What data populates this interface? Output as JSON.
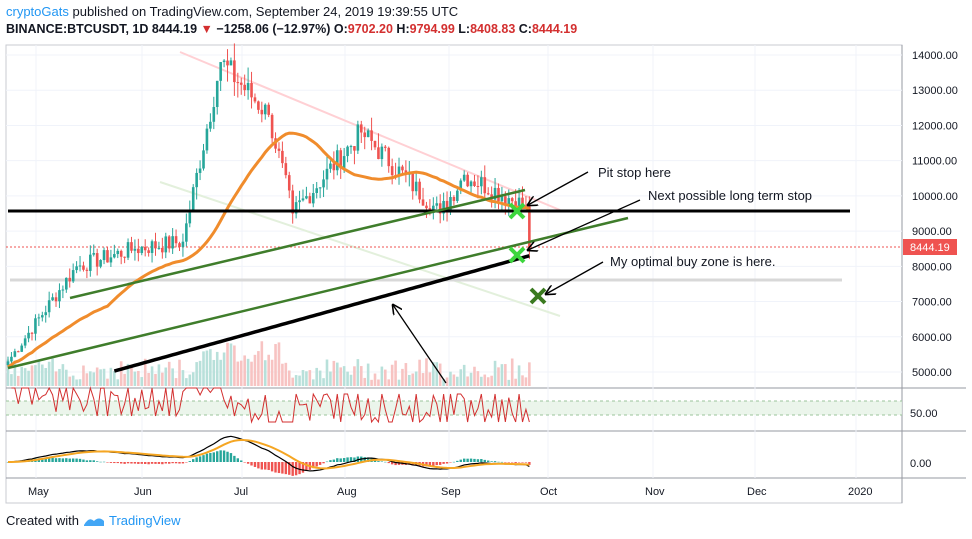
{
  "header": {
    "author": "cryptoGats",
    "published": "published on TradingView.com, September 24, 2019 19:39:55 UTC",
    "symbol": "BINANCE:BTCUSDT, 1D",
    "last": "8444.19",
    "change": "−1258.06 (−12.97%)",
    "o_label": "O:",
    "o_value": "9702.20",
    "h_label": "H:",
    "h_value": "9794.99",
    "l_label": "L:",
    "l_value": "8408.83",
    "c_label": "C:",
    "c_value": "8444.19"
  },
  "footer": {
    "created_with": "Created with",
    "brand": "TradingView"
  },
  "annotations": {
    "pit_stop": "Pit stop here",
    "next_stop": "Next possible long term stop",
    "buy_zone": "My optimal buy zone is here."
  },
  "colors": {
    "up": "#26a69a",
    "down": "#ef5350",
    "ma50": "#f08c2c",
    "ma200": "#000000",
    "trendline": "#3f7d2b",
    "resistance": "#ff9aa2",
    "marker_green": "#3dd63d",
    "marker_dark": "#3a7a1f"
  },
  "chart_data": {
    "type": "candlestick",
    "symbol": "BINANCE:BTCUSDT",
    "interval": "1D",
    "x_ticks": [
      "May",
      "Jun",
      "Jul",
      "Aug",
      "Sep",
      "Oct",
      "Nov",
      "Dec",
      "2020"
    ],
    "y_ticks": [
      "14000.00",
      "13000.00",
      "12000.00",
      "11000.00",
      "10000.00",
      "9000.00",
      "8000.00",
      "7000.00",
      "6000.00",
      "5000.00"
    ],
    "ylim": [
      4600,
      14300
    ],
    "price_label": "8444.19",
    "rsi_tick": "50.00",
    "macd_tick": "0.00",
    "key_points": [
      {
        "date": "2019-04-25",
        "price": 5300
      },
      {
        "date": "2019-05-15",
        "price": 8000
      },
      {
        "date": "2019-06-01",
        "price": 8500
      },
      {
        "date": "2019-06-15",
        "price": 8700
      },
      {
        "date": "2019-06-26",
        "price": 13800
      },
      {
        "date": "2019-07-10",
        "price": 12300
      },
      {
        "date": "2019-07-17",
        "price": 9500
      },
      {
        "date": "2019-08-06",
        "price": 11800
      },
      {
        "date": "2019-08-29",
        "price": 9500
      },
      {
        "date": "2019-09-05",
        "price": 10600
      },
      {
        "date": "2019-09-23",
        "price": 9700
      },
      {
        "date": "2019-09-24",
        "price": 8444
      }
    ]
  }
}
